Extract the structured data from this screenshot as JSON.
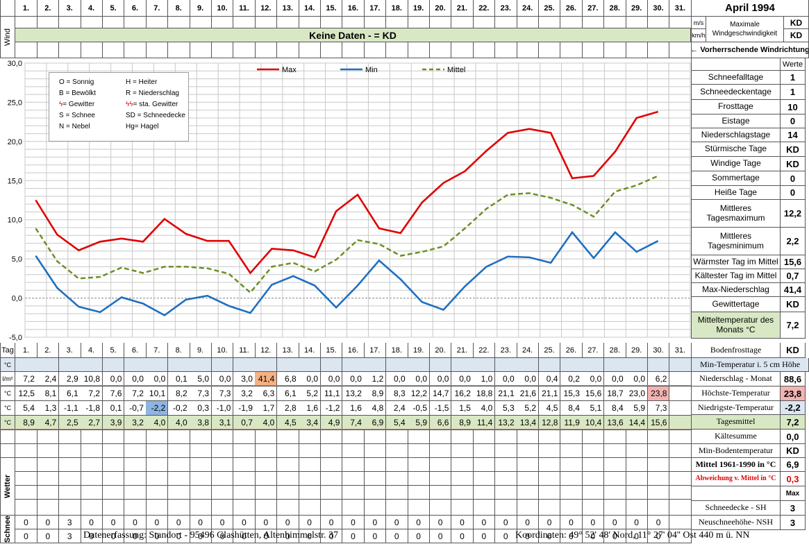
{
  "title": "April 1994",
  "days": [
    "1.",
    "2.",
    "3.",
    "4.",
    "5.",
    "6.",
    "7.",
    "8.",
    "9.",
    "10.",
    "11.",
    "12.",
    "13.",
    "14.",
    "15.",
    "16.",
    "17.",
    "18.",
    "19.",
    "20.",
    "21.",
    "22.",
    "23.",
    "24.",
    "25.",
    "26.",
    "27.",
    "28.",
    "29.",
    "30.",
    "31."
  ],
  "wind": {
    "row_label": "Wind",
    "banner": "Keine Daten -  = KD",
    "unit_ms": "m/s",
    "unit_kmh": "km/h",
    "max_label": "Maximale Windgeschwindigkeit",
    "val_ms": "KD",
    "val_kmh": "KD",
    "direction_label": "← Vorherrschende Windrichtung"
  },
  "legend_box": [
    [
      "O = Sonnig",
      "H = Heiter"
    ],
    [
      "B = Bewölkt",
      "R = Niederschlag"
    ],
    [
      "= Gewitter",
      "= sta. Gewitter"
    ],
    [
      "S = Schnee",
      "SD = Schneedecke"
    ],
    [
      "N = Nebel",
      "Hg= Hagel"
    ]
  ],
  "colors": {
    "max": "#e00000",
    "min": "#1f6fc0",
    "mittel": "#6b8e23",
    "banner": "#d9e8c4",
    "blue_row": "#dce6f1",
    "hi": "#f4b183",
    "lo": "#8db4e2",
    "hi2": "#f2b3b3"
  },
  "chart_data": {
    "type": "line",
    "x": [
      "1.",
      "2.",
      "3.",
      "4.",
      "5.",
      "6.",
      "7.",
      "8.",
      "9.",
      "10.",
      "11.",
      "12.",
      "13.",
      "14.",
      "15.",
      "16.",
      "17.",
      "18.",
      "19.",
      "20.",
      "21.",
      "22.",
      "23.",
      "24.",
      "25.",
      "26.",
      "27.",
      "28.",
      "29.",
      "30."
    ],
    "ylim": [
      -5,
      30
    ],
    "yticks": [
      "30,0",
      "25,0",
      "20,0",
      "15,0",
      "10,0",
      "5,0",
      "0,0",
      "-5,0"
    ],
    "grid": true,
    "legend_placement": "top",
    "series": [
      {
        "name": "Max",
        "values": [
          12.5,
          8.1,
          6.1,
          7.2,
          7.6,
          7.2,
          10.1,
          8.2,
          7.3,
          7.3,
          3.2,
          6.3,
          6.1,
          5.2,
          11.1,
          13.2,
          8.9,
          8.3,
          12.2,
          14.7,
          16.2,
          18.8,
          21.1,
          21.6,
          21.1,
          15.3,
          15.6,
          18.7,
          23.0,
          23.8
        ]
      },
      {
        "name": "Min",
        "values": [
          5.4,
          1.3,
          -1.1,
          -1.8,
          0.1,
          -0.7,
          -2.2,
          -0.2,
          0.3,
          -1.0,
          -1.9,
          1.7,
          2.8,
          1.6,
          -1.2,
          1.6,
          4.8,
          2.4,
          -0.5,
          -1.5,
          1.5,
          4.0,
          5.3,
          5.2,
          4.5,
          8.4,
          5.1,
          8.4,
          5.9,
          7.3
        ]
      },
      {
        "name": "Mittel",
        "values": [
          8.9,
          4.7,
          2.5,
          2.7,
          3.9,
          3.2,
          4.0,
          4.0,
          3.8,
          3.1,
          0.7,
          4.0,
          4.5,
          3.4,
          4.9,
          7.4,
          6.9,
          5.4,
          5.9,
          6.6,
          8.9,
          11.4,
          13.2,
          13.4,
          12.8,
          11.9,
          10.4,
          13.6,
          14.4,
          15.6
        ]
      }
    ]
  },
  "table": {
    "tag_label": "Tag",
    "rows": [
      {
        "unit": "°C",
        "values": [
          "",
          "",
          "",
          "",
          "",
          "",
          "",
          "",
          "",
          "",
          "",
          "",
          "",
          "",
          "",
          "",
          "",
          "",
          "",
          "",
          "",
          "",
          "",
          "",
          "",
          "",
          "",
          "",
          "",
          "",
          ""
        ],
        "bg": "blue"
      },
      {
        "unit": "l/m²",
        "values": [
          "7,2",
          "2,4",
          "2,9",
          "10,8",
          "0,0",
          "0,0",
          "0,0",
          "0,1",
          "5,0",
          "0,0",
          "3,0",
          "41,4",
          "6,8",
          "0,0",
          "0,0",
          "0,0",
          "1,2",
          "0,0",
          "0,0",
          "0,0",
          "0,0",
          "1,0",
          "0,0",
          "0,0",
          "0,4",
          "0,2",
          "0,0",
          "0,0",
          "0,0",
          "6,2",
          ""
        ]
      },
      {
        "unit": "°C",
        "values": [
          "12,5",
          "8,1",
          "6,1",
          "7,2",
          "7,6",
          "7,2",
          "10,1",
          "8,2",
          "7,3",
          "7,3",
          "3,2",
          "6,3",
          "6,1",
          "5,2",
          "11,1",
          "13,2",
          "8,9",
          "8,3",
          "12,2",
          "14,7",
          "16,2",
          "18,8",
          "21,1",
          "21,6",
          "21,1",
          "15,3",
          "15,6",
          "18,7",
          "23,0",
          "23,8",
          ""
        ]
      },
      {
        "unit": "°C",
        "values": [
          "5,4",
          "1,3",
          "-1,1",
          "-1,8",
          "0,1",
          "-0,7",
          "-2,2",
          "-0,2",
          "0,3",
          "-1,0",
          "-1,9",
          "1,7",
          "2,8",
          "1,6",
          "-1,2",
          "1,6",
          "4,8",
          "2,4",
          "-0,5",
          "-1,5",
          "1,5",
          "4,0",
          "5,3",
          "5,2",
          "4,5",
          "8,4",
          "5,1",
          "8,4",
          "5,9",
          "7,3",
          ""
        ]
      },
      {
        "unit": "°C",
        "values": [
          "8,9",
          "4,7",
          "2,5",
          "2,7",
          "3,9",
          "3,2",
          "4,0",
          "4,0",
          "3,8",
          "3,1",
          "0,7",
          "4,0",
          "4,5",
          "3,4",
          "4,9",
          "7,4",
          "6,9",
          "5,4",
          "5,9",
          "6,6",
          "8,9",
          "11,4",
          "13,2",
          "13,4",
          "12,8",
          "11,9",
          "10,4",
          "13,6",
          "14,4",
          "15,6",
          ""
        ],
        "bg": "green"
      }
    ],
    "wetter_label": "Wetter",
    "schnee_label": "Schnee",
    "schnee_rows": [
      [
        "0",
        "0",
        "3",
        "0",
        "0",
        "0",
        "0",
        "0",
        "0",
        "0",
        "0",
        "0",
        "0",
        "0",
        "0",
        "0",
        "0",
        "0",
        "0",
        "0",
        "0",
        "0",
        "0",
        "0",
        "0",
        "0",
        "0",
        "0",
        "0",
        "0",
        ""
      ],
      [
        "0",
        "0",
        "3",
        "0",
        "0",
        "0",
        "0",
        "0",
        "0",
        "0",
        "0",
        "0",
        "0",
        "0",
        "0",
        "0",
        "0",
        "0",
        "0",
        "0",
        "0",
        "0",
        "0",
        "0",
        "0",
        "0",
        "0",
        "0",
        "0",
        "0",
        ""
      ]
    ]
  },
  "stats": {
    "werte_label": "Werte",
    "items": [
      {
        "name": "Schneefalltage",
        "value": "1"
      },
      {
        "name": "Schneedeckentage",
        "value": "1"
      },
      {
        "name": "Frosttage",
        "value": "10"
      },
      {
        "name": "Eistage",
        "value": "0"
      },
      {
        "name": "Niederschlagstage",
        "value": "14"
      },
      {
        "name": "Stürmische Tage",
        "value": "KD"
      },
      {
        "name": "Windige Tage",
        "value": "KD"
      },
      {
        "name": "Sommertage",
        "value": "0"
      },
      {
        "name": "Heiße Tage",
        "value": "0"
      },
      {
        "name": "Mittleres Tagesmaximum",
        "value": "12,2"
      },
      {
        "name": "Mittleres Tagesminimum",
        "value": "2,2"
      },
      {
        "name": "Wärmster Tag im Mittel",
        "value": "15,6"
      },
      {
        "name": "Kältester Tag im Mittel",
        "value": "0,7"
      },
      {
        "name": "Max-Niederschlag",
        "value": "41,4"
      },
      {
        "name": "Gewittertage",
        "value": "KD"
      },
      {
        "name": "Mitteltemperatur des Monats °C",
        "value": "7,2"
      }
    ],
    "lower": [
      {
        "name": "Bodenfrosttage",
        "value": "KD"
      },
      {
        "name": "Min-Temperatur i. 5 cm Höhe",
        "value": ""
      },
      {
        "name": "Niederschlag - Monat",
        "value": "88,6"
      },
      {
        "name": "Höchste-Temperatur",
        "value": "23,8"
      },
      {
        "name": "Niedrigste-Temperatur",
        "value": "-2,2"
      },
      {
        "name": "Tagesmittel",
        "value": "7,2"
      },
      {
        "name": "Kältesumme",
        "value": "0,0"
      },
      {
        "name": "Min-Bodentemperatur",
        "value": "KD"
      },
      {
        "name": "Mittel 1961-1990 in °C",
        "value": "6,9"
      },
      {
        "name": "Abweichung v. Mittel in °C",
        "value": "0,3"
      },
      {
        "name": "",
        "value": "Max"
      },
      {
        "name": "Schneedecke -  SH",
        "value": "3"
      },
      {
        "name": "Neuschneehöhe- NSH",
        "value": "3"
      }
    ]
  },
  "footer": {
    "left": "Datenerfassung:  Standort -   95496  Glashütten, Altenhimmelstr. 37",
    "right": "Koordinaten:  49° 52' 48' Nord,  11° 27' 04'' Ost   440 m ü. NN"
  }
}
